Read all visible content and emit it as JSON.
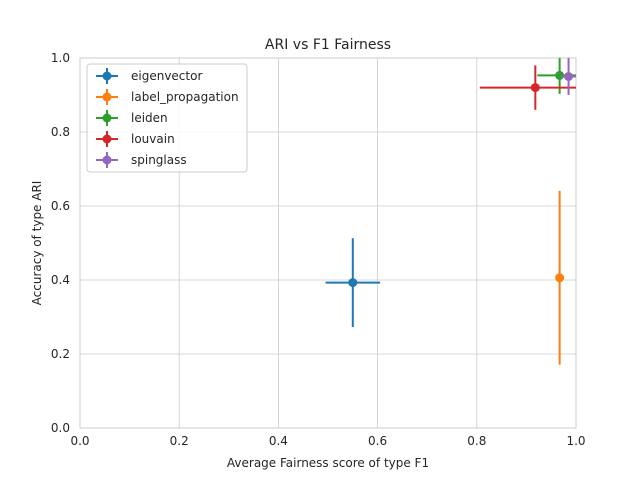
{
  "chart_data": {
    "type": "scatter",
    "title": "ARI vs F1 Fairness",
    "xlabel": "Average Fairness score of type F1",
    "ylabel": "Accuracy of type ARI",
    "xlim": [
      0.0,
      1.0
    ],
    "ylim": [
      0.0,
      1.0
    ],
    "x_ticks": [
      "0.0",
      "0.2",
      "0.4",
      "0.6",
      "0.8",
      "1.0"
    ],
    "y_ticks": [
      "0.0",
      "0.2",
      "0.4",
      "0.6",
      "0.8",
      "1.0"
    ],
    "grid": true,
    "legend_position": "top-left",
    "error_bars": true,
    "series": [
      {
        "name": "eigenvector",
        "color": "#1f77b4",
        "x": 0.55,
        "y": 0.393,
        "x_err": 0.055,
        "y_err": 0.12
      },
      {
        "name": "label_propagation",
        "color": "#ff7f0e",
        "x": 0.967,
        "y": 0.406,
        "x_err": 0.004,
        "y_err": 0.235
      },
      {
        "name": "leiden",
        "color": "#2ca02c",
        "x": 0.967,
        "y": 0.953,
        "x_err": 0.045,
        "y_err": 0.05
      },
      {
        "name": "louvain",
        "color": "#d62728",
        "x": 0.918,
        "y": 0.92,
        "x_err": 0.112,
        "y_err": 0.06
      },
      {
        "name": "spinglass",
        "color": "#9467bd",
        "x": 0.985,
        "y": 0.95,
        "x_err": 0.015,
        "y_err": 0.05
      }
    ]
  }
}
